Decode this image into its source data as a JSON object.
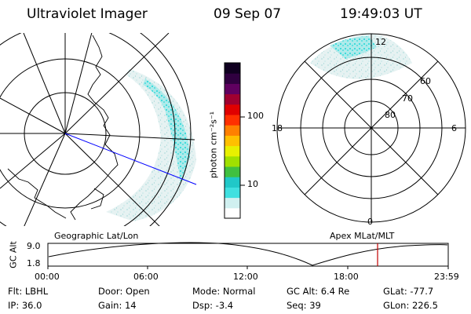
{
  "header": {
    "title": "Ultraviolet Imager",
    "date": "09 Sep 07",
    "time": "19:49:03 UT"
  },
  "colorbar": {
    "unit_label": "photon cm⁻²s⁻¹",
    "ticks": [
      "100",
      "10"
    ],
    "scale": "log",
    "colors": [
      "#ffffff",
      "#d0f0f0",
      "#40e0e0",
      "#20c8c8",
      "#40c040",
      "#a0e000",
      "#e8f000",
      "#ffc000",
      "#ff8000",
      "#ff3000",
      "#e00000",
      "#a00030",
      "#600060",
      "#300040",
      "#100020"
    ]
  },
  "left_panel": {
    "caption": "Geographic Lat/Lon",
    "marker_line_color": "#0000ff"
  },
  "right_panel": {
    "caption": "Apex MLat/MLT",
    "mlt_labels": {
      "top": "12",
      "bottom": "0",
      "left": "18",
      "right": "6"
    },
    "lat_labels": [
      "60",
      "70",
      "80"
    ]
  },
  "altitude_plot": {
    "ylabel": "GC Alt",
    "y_ticks": [
      "9.0",
      "1.8"
    ],
    "x_ticks": [
      "00:00",
      "06:00",
      "12:00",
      "18:00",
      "23:59"
    ],
    "current_time_marker_color": "#c00000"
  },
  "info": {
    "flt": "Flt: LBHL",
    "ip": "IP: 36.0",
    "door": "Door: Open",
    "gain": "Gain: 14",
    "mode": "Mode: Normal",
    "dsp": "Dsp:   -3.4",
    "gc_alt": "GC Alt: 6.4 Re",
    "seq": "Seq: 39",
    "glat": "GLat: -77.7",
    "glon": "GLon: 226.5"
  }
}
